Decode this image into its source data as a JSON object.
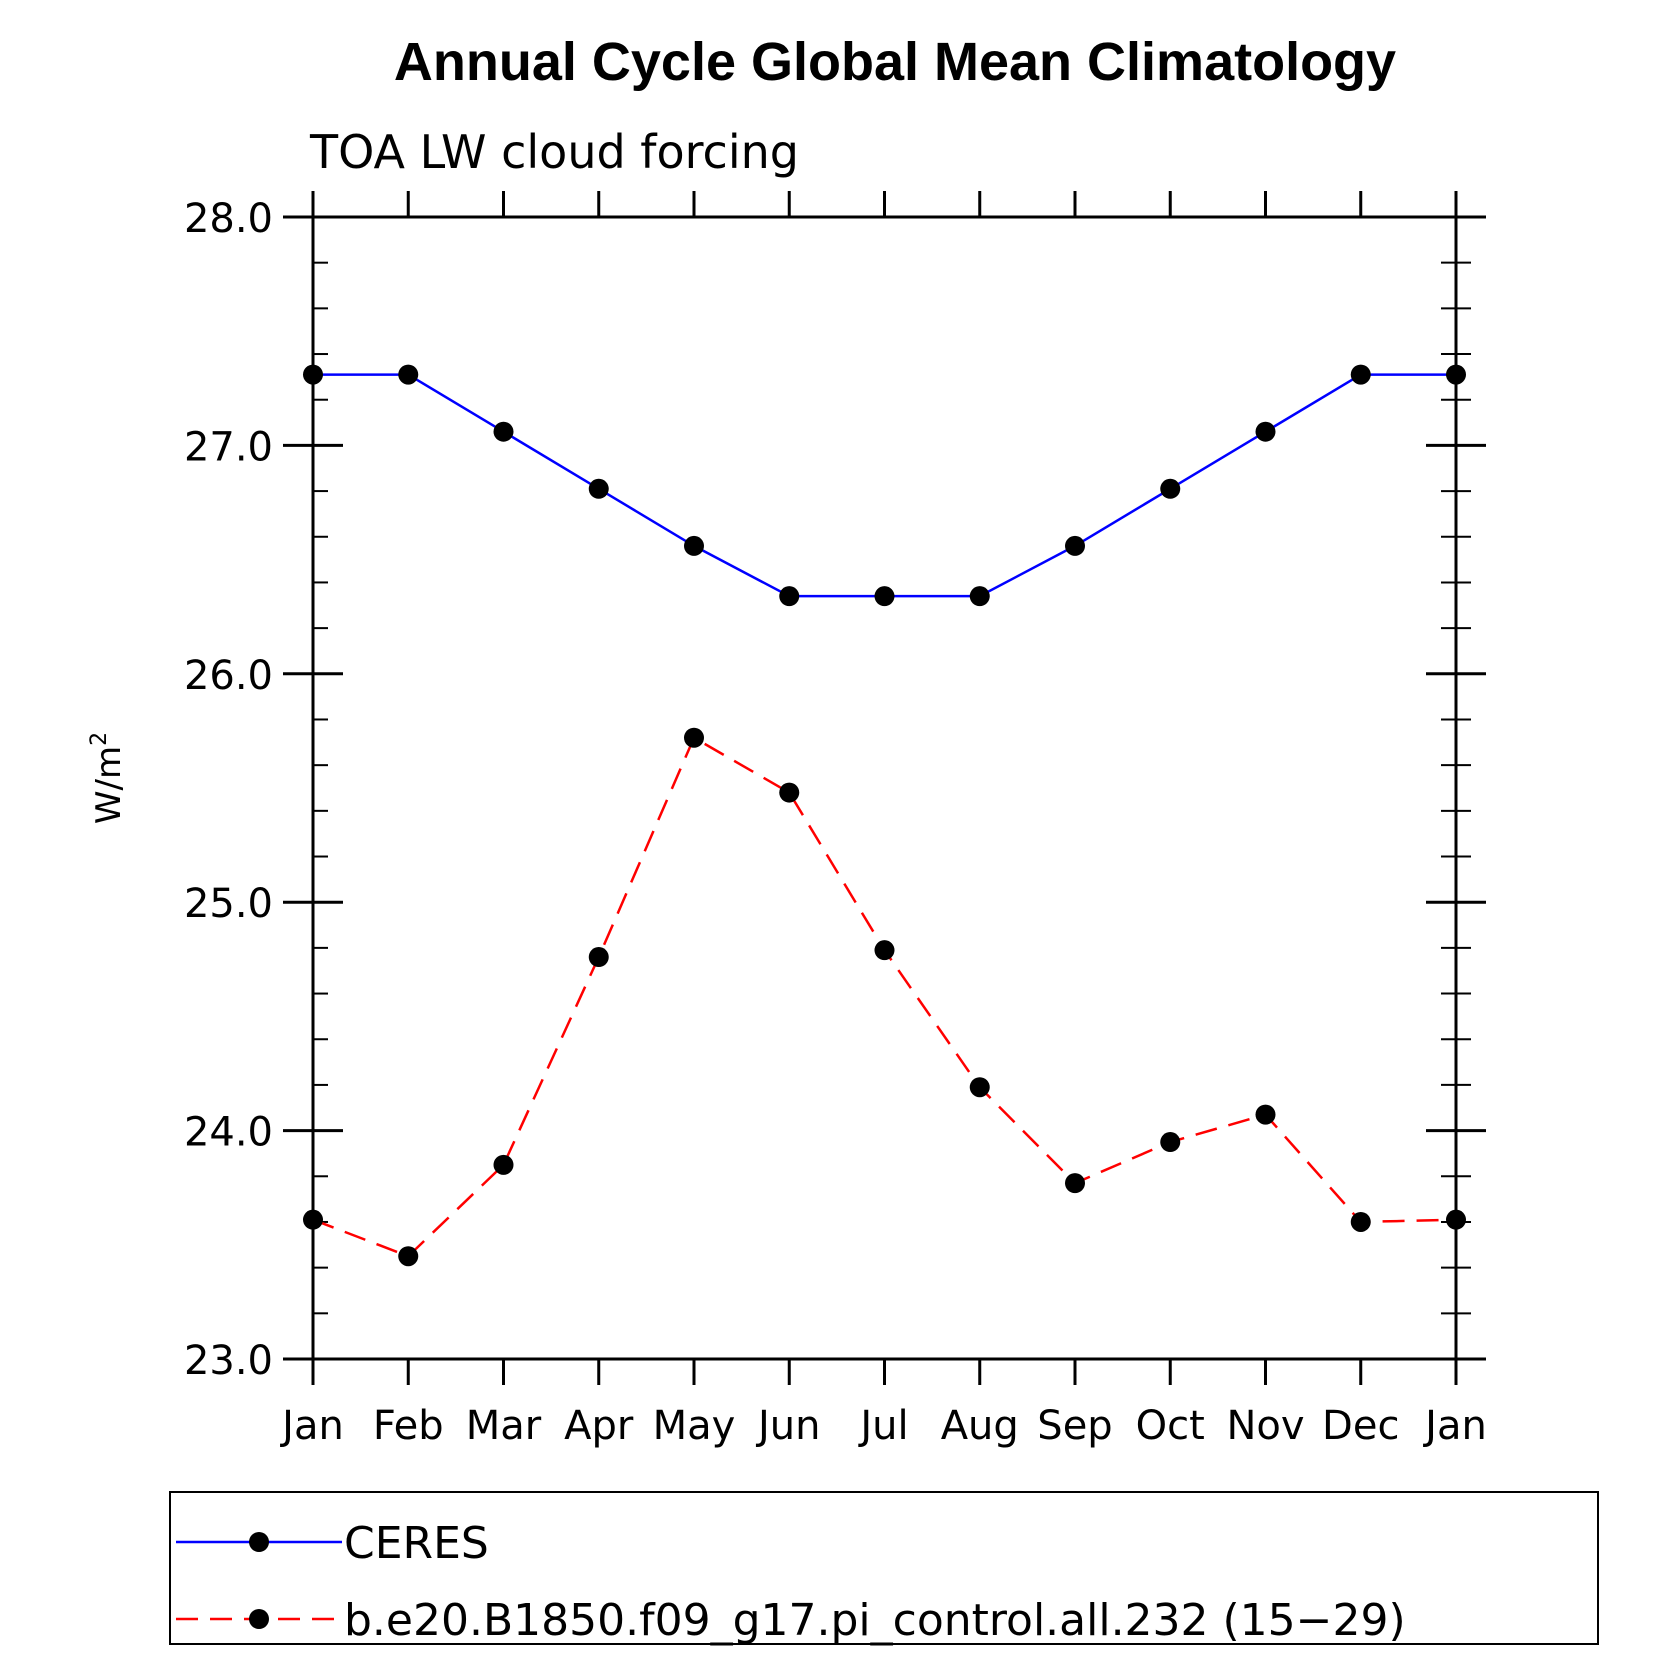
{
  "chart_data": {
    "type": "line",
    "title": "Annual Cycle Global Mean Climatology",
    "subtitle": "TOA LW cloud forcing",
    "ylabel": "W/m",
    "ylabel_sup": "2",
    "xlabel": "",
    "categories": [
      "Jan",
      "Feb",
      "Mar",
      "Apr",
      "May",
      "Jun",
      "Jul",
      "Aug",
      "Sep",
      "Oct",
      "Nov",
      "Dec",
      "Jan"
    ],
    "ylim": [
      23.0,
      28.0
    ],
    "yticks": [
      "23.0",
      "24.0",
      "25.0",
      "26.0",
      "27.0",
      "28.0"
    ],
    "grid": false,
    "legend_position": "bottom",
    "series": [
      {
        "name": "CERES",
        "color": "#0000ff",
        "line_style": "solid",
        "marker": "filled-circle",
        "values": [
          27.31,
          27.31,
          27.06,
          26.81,
          26.56,
          26.34,
          26.34,
          26.34,
          26.56,
          26.81,
          27.06,
          27.31,
          27.31
        ]
      },
      {
        "name": "b.e20.B1850.f09_g17.pi_control.all.232 (15−29)",
        "color": "#ff0000",
        "line_style": "dashed",
        "marker": "filled-circle",
        "values": [
          23.61,
          23.45,
          23.85,
          24.76,
          25.72,
          25.48,
          24.79,
          24.19,
          23.77,
          23.95,
          24.07,
          23.6,
          23.61
        ]
      }
    ]
  }
}
